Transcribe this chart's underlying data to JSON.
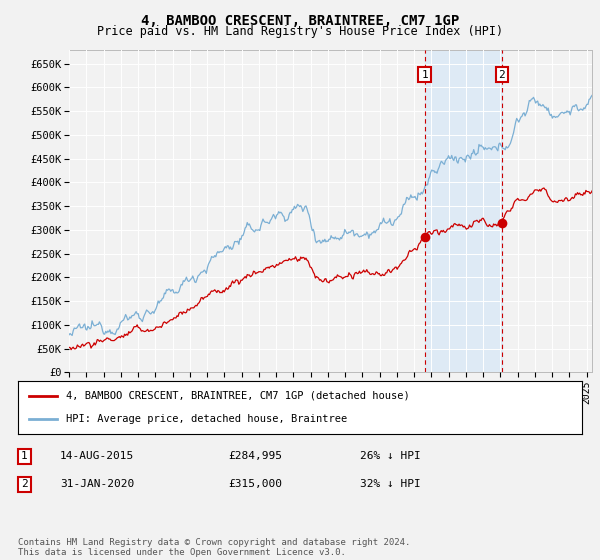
{
  "title": "4, BAMBOO CRESCENT, BRAINTREE, CM7 1GP",
  "subtitle": "Price paid vs. HM Land Registry's House Price Index (HPI)",
  "yticks": [
    0,
    50000,
    100000,
    150000,
    200000,
    250000,
    300000,
    350000,
    400000,
    450000,
    500000,
    550000,
    600000,
    650000
  ],
  "xlim_start": 1995.0,
  "xlim_end": 2025.33,
  "ylim": [
    0,
    678000
  ],
  "transaction1_date": "14-AUG-2015",
  "transaction1_price": 284995,
  "transaction1_label": "£284,995",
  "transaction1_hpi": "26% ↓ HPI",
  "transaction1_x": 2015.617,
  "transaction2_date": "31-JAN-2020",
  "transaction2_price": 315000,
  "transaction2_label": "£315,000",
  "transaction2_hpi": "32% ↓ HPI",
  "transaction2_x": 2020.083,
  "hpi_color": "#7bafd4",
  "price_color": "#cc0000",
  "shade_color": "#deeaf5",
  "legend_label_price": "4, BAMBOO CRESCENT, BRAINTREE, CM7 1GP (detached house)",
  "legend_label_hpi": "HPI: Average price, detached house, Braintree",
  "footnote": "Contains HM Land Registry data © Crown copyright and database right 2024.\nThis data is licensed under the Open Government Licence v3.0.",
  "plot_bg": "#f2f2f2",
  "fig_bg": "#f2f2f2",
  "grid_color": "#ffffff"
}
